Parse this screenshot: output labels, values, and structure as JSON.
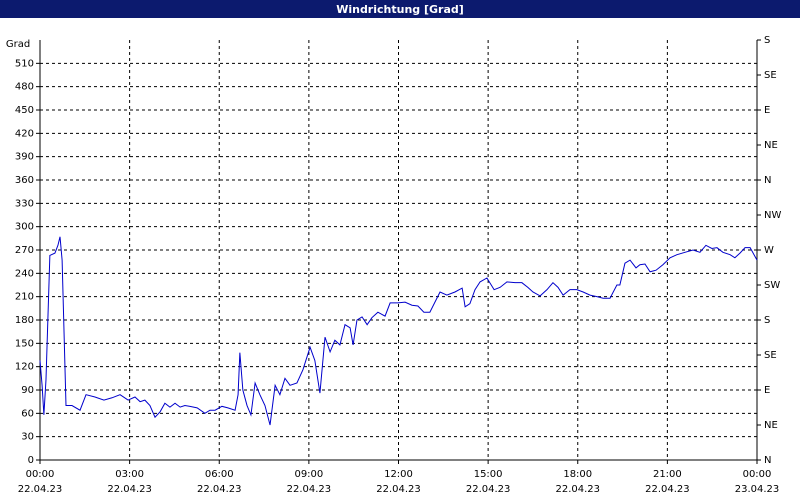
{
  "chart_data": {
    "type": "line",
    "title": "Windrichtung [Grad]",
    "y_label": "Grad",
    "x": [
      0,
      0.07,
      0.13,
      0.2,
      0.33,
      0.5,
      0.6,
      0.67,
      0.74,
      0.87,
      1.07,
      1.34,
      1.54,
      1.84,
      2.14,
      2.41,
      2.68,
      2.95,
      3.18,
      3.35,
      3.51,
      3.68,
      3.85,
      4.02,
      4.18,
      4.35,
      4.52,
      4.69,
      4.85,
      5.02,
      5.26,
      5.52,
      5.69,
      5.86,
      6.09,
      6.29,
      6.53,
      6.63,
      6.69,
      6.79,
      6.93,
      7.06,
      7.2,
      7.36,
      7.53,
      7.7,
      7.87,
      8.03,
      8.2,
      8.37,
      8.6,
      8.8,
      9.04,
      9.2,
      9.37,
      9.54,
      9.71,
      9.87,
      10.04,
      10.21,
      10.38,
      10.48,
      10.61,
      10.78,
      10.95,
      11.11,
      11.31,
      11.55,
      11.72,
      11.98,
      12.22,
      12.45,
      12.65,
      12.85,
      13.05,
      13.26,
      13.39,
      13.62,
      13.89,
      14.13,
      14.23,
      14.39,
      14.56,
      14.73,
      14.96,
      15.2,
      15.4,
      15.63,
      15.9,
      16.13,
      16.33,
      16.5,
      16.74,
      16.97,
      17.17,
      17.34,
      17.51,
      17.74,
      17.97,
      18.18,
      18.41,
      18.64,
      18.85,
      19.08,
      19.31,
      19.41,
      19.58,
      19.75,
      19.95,
      20.08,
      20.25,
      20.42,
      20.62,
      20.85,
      21.09,
      21.32,
      21.59,
      21.86,
      22.09,
      22.29,
      22.49,
      22.66,
      22.86,
      23.1,
      23.26,
      23.43,
      23.6,
      23.77,
      24
    ],
    "series": [
      {
        "name": "Windrichtung",
        "color": "#0000cc",
        "values": [
          128,
          96,
          58,
          103,
          263,
          266,
          276,
          287,
          257,
          70,
          70,
          64,
          84,
          81,
          77,
          80,
          84,
          77,
          81,
          75,
          77,
          70,
          55,
          62,
          73,
          68,
          73,
          68,
          70,
          69,
          67,
          60,
          64,
          64,
          69,
          67,
          64,
          84,
          138,
          90,
          70,
          58,
          99,
          84,
          70,
          45,
          96,
          84,
          105,
          96,
          99,
          116,
          145,
          128,
          86,
          158,
          139,
          154,
          148,
          174,
          170,
          148,
          180,
          184,
          174,
          183,
          190,
          185,
          202,
          202,
          203,
          199,
          198,
          190,
          190,
          206,
          216,
          212,
          216,
          221,
          197,
          201,
          219,
          229,
          234,
          219,
          222,
          229,
          228,
          228,
          222,
          216,
          211,
          219,
          228,
          222,
          212,
          219,
          219,
          216,
          212,
          210,
          208,
          208,
          225,
          225,
          253,
          257,
          247,
          251,
          252,
          242,
          244,
          251,
          260,
          264,
          267,
          270,
          267,
          276,
          272,
          273,
          267,
          264,
          260,
          266,
          273,
          273,
          257
        ]
      }
    ],
    "xlim": [
      0,
      24
    ],
    "xticks": [
      {
        "value": 0,
        "label": "00:00"
      },
      {
        "value": 3,
        "label": "03:00"
      },
      {
        "value": 6,
        "label": "06:00"
      },
      {
        "value": 9,
        "label": "09:00"
      },
      {
        "value": 12,
        "label": "12:00"
      },
      {
        "value": 15,
        "label": "15:00"
      },
      {
        "value": 18,
        "label": "18:00"
      },
      {
        "value": 21,
        "label": "21:00"
      },
      {
        "value": 24,
        "label": "00:00"
      }
    ],
    "xtick_dates": [
      "22.04.23",
      "22.04.23",
      "22.04.23",
      "22.04.23",
      "22.04.23",
      "22.04.23",
      "22.04.23",
      "22.04.23",
      "23.04.23"
    ],
    "ylim": [
      0,
      540
    ],
    "yticks": [
      0,
      30,
      60,
      90,
      120,
      150,
      180,
      210,
      240,
      270,
      300,
      330,
      360,
      390,
      420,
      450,
      480,
      510
    ],
    "y2lim": [
      0,
      540
    ],
    "y2ticks": [
      {
        "value": 0,
        "label": "N"
      },
      {
        "value": 45,
        "label": "NE"
      },
      {
        "value": 90,
        "label": "E"
      },
      {
        "value": 135,
        "label": "SE"
      },
      {
        "value": 180,
        "label": "S"
      },
      {
        "value": 225,
        "label": "SW"
      },
      {
        "value": 270,
        "label": "W"
      },
      {
        "value": 315,
        "label": "NW"
      },
      {
        "value": 360,
        "label": "N"
      },
      {
        "value": 405,
        "label": "NE"
      },
      {
        "value": 450,
        "label": "E"
      },
      {
        "value": 495,
        "label": "SE"
      },
      {
        "value": 540,
        "label": "S"
      }
    ],
    "grid": true
  }
}
